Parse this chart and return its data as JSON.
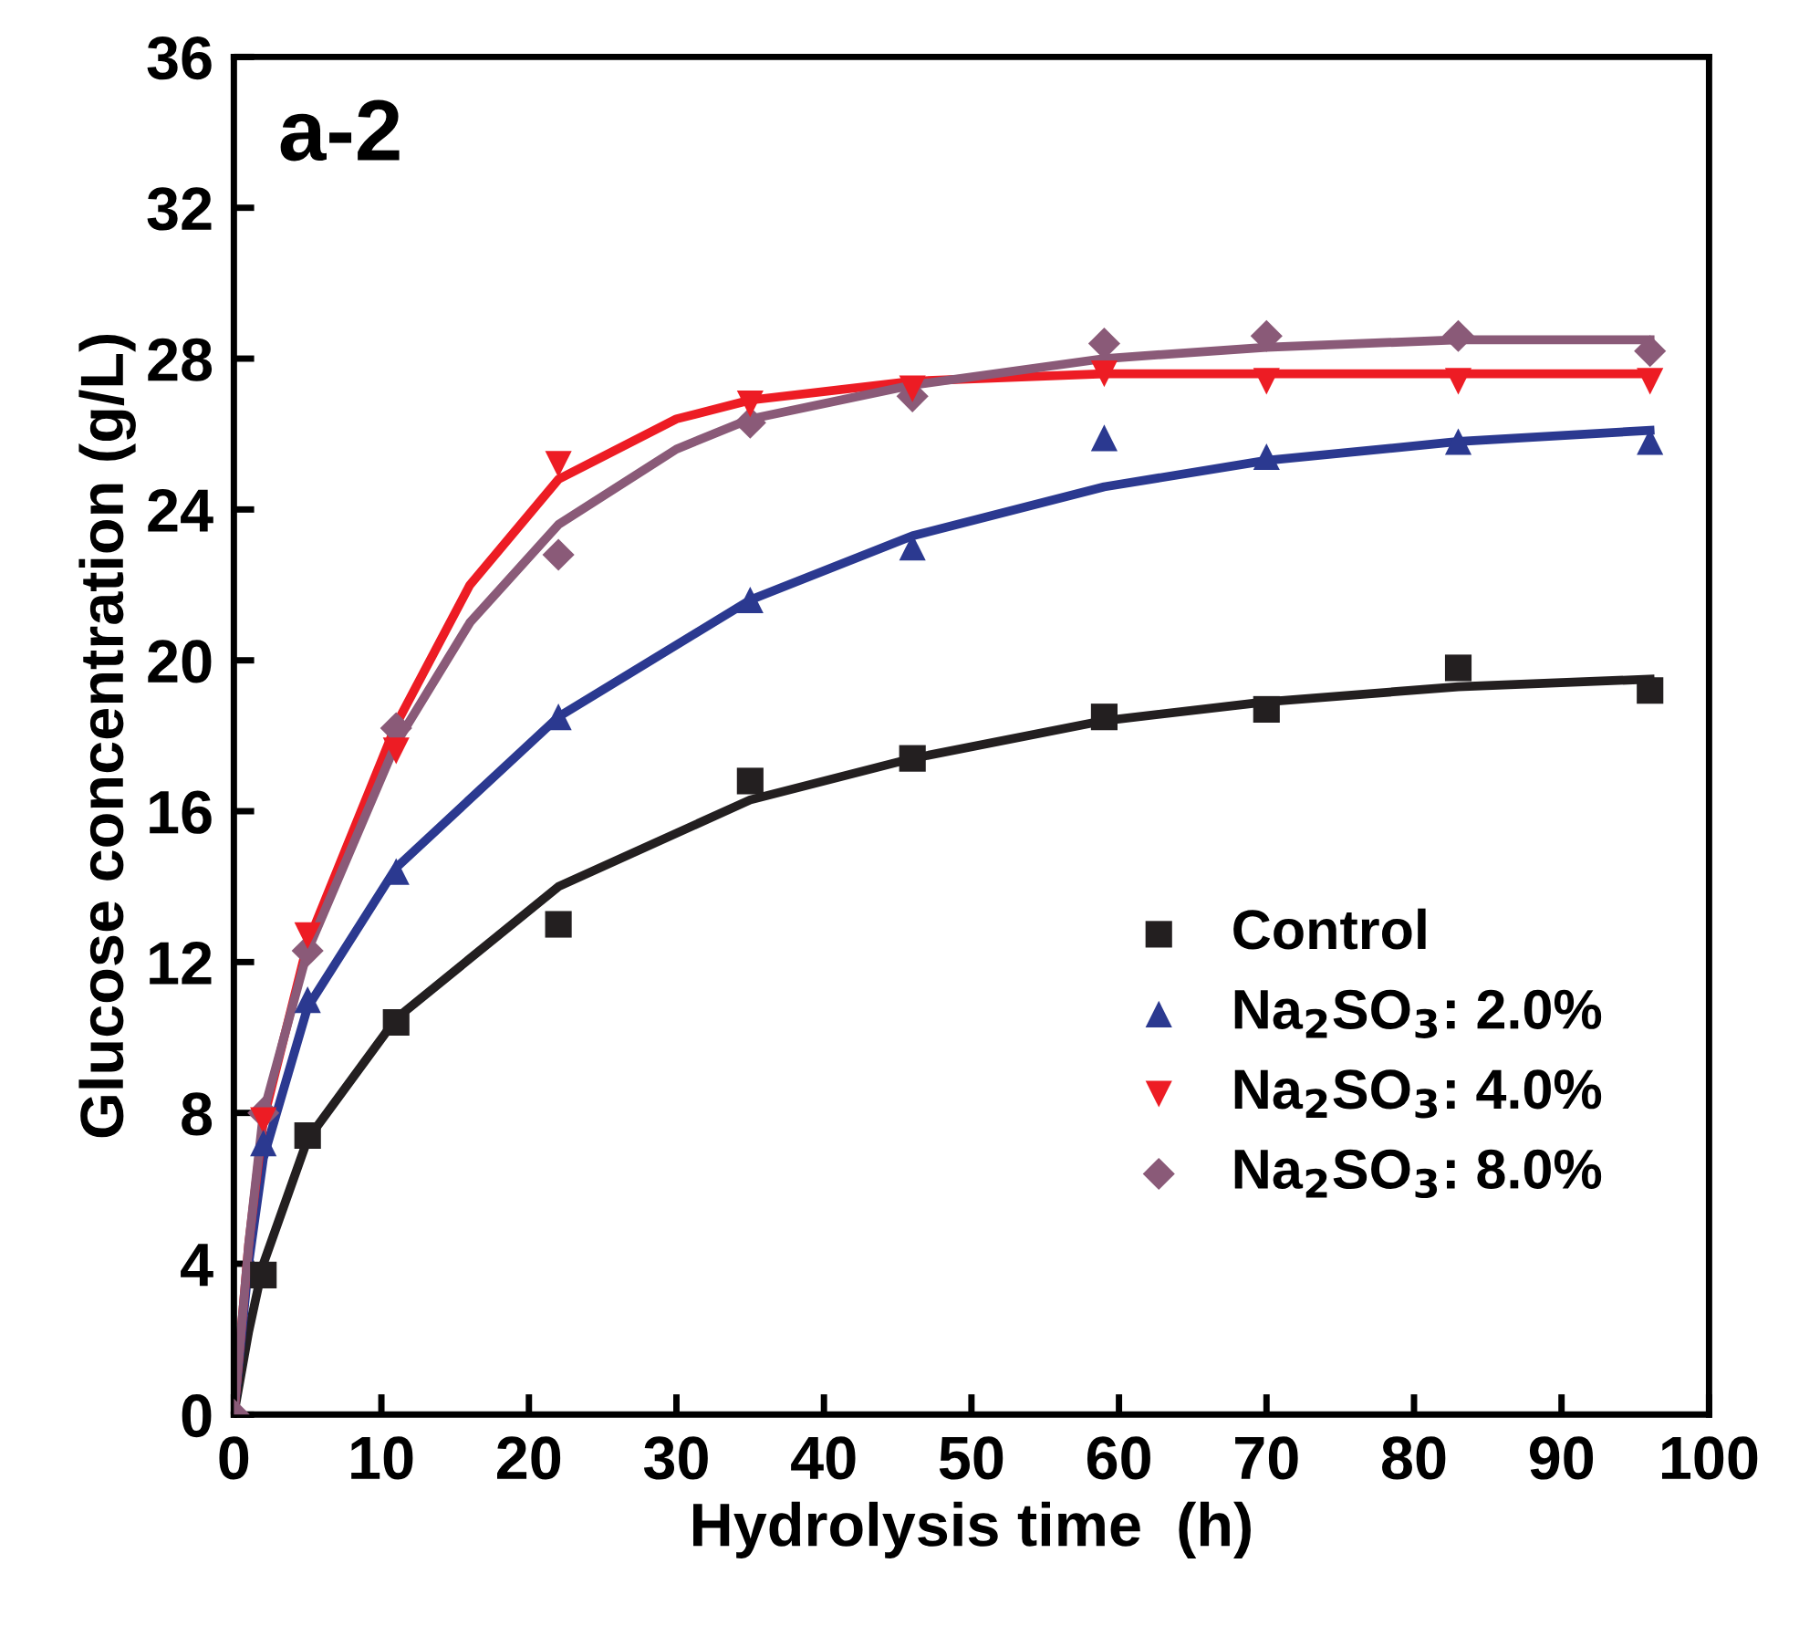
{
  "chart_data": {
    "type": "scatter",
    "xlabel": "Hydrolysis time  (h)",
    "ylabel": "Glucose concentration (g/L)",
    "annotations": [
      "a-2"
    ],
    "x": [
      0,
      2,
      5,
      11,
      22,
      35,
      46,
      59,
      70,
      83,
      96
    ],
    "xlim": [
      0,
      100
    ],
    "xticks": [
      0,
      10,
      20,
      30,
      40,
      50,
      60,
      70,
      80,
      90,
      100
    ],
    "ylim": [
      0,
      36
    ],
    "yticks": [
      0,
      4,
      8,
      12,
      16,
      20,
      24,
      28,
      32,
      36
    ],
    "grid": false,
    "legend": "bottom right",
    "series": [
      {
        "name": "Control",
        "color": "#231f20",
        "marker": "square",
        "values": [
          null,
          3.7,
          7.4,
          10.4,
          13.0,
          16.8,
          17.4,
          18.5,
          18.7,
          19.8,
          19.2
        ]
      },
      {
        "name": "Na$_{2}$SO$_{3}$: 2.0%",
        "color": "#2b3990",
        "marker": "triangle",
        "values": [
          null,
          7.2,
          11.0,
          14.4,
          18.5,
          21.6,
          23.0,
          25.9,
          25.4,
          25.8,
          25.8
        ]
      },
      {
        "name": "Na$_{2}$SO$_{3}$: 4.0%",
        "color": "#ed1c24",
        "marker": "triangle_down",
        "values": [
          null,
          7.8,
          12.7,
          17.6,
          25.2,
          26.8,
          27.2,
          27.6,
          27.4,
          27.4,
          27.4
        ]
      },
      {
        "name": "Na$_{2}$SO$_{3}$: 8.0%",
        "color": "#8a5a78",
        "marker": "diamond",
        "values": [
          0,
          8.0,
          12.3,
          18.2,
          22.8,
          26.3,
          27.0,
          28.4,
          28.6,
          28.6,
          28.2
        ]
      },
      {
        "type": "line",
        "color": "#231f20",
        "x": [
          0,
          1,
          2,
          5,
          11,
          22,
          35,
          46,
          59,
          70,
          83,
          96
        ],
        "values": [
          0,
          2.2,
          4.0,
          7.3,
          10.5,
          14.0,
          16.3,
          17.4,
          18.4,
          18.9,
          19.3,
          19.5
        ]
      },
      {
        "type": "line",
        "color": "#2b3990",
        "x": [
          0,
          1,
          2,
          5,
          11,
          22,
          35,
          46,
          59,
          70,
          83,
          96
        ],
        "values": [
          0,
          4.0,
          6.8,
          10.8,
          14.5,
          18.5,
          21.6,
          23.3,
          24.6,
          25.3,
          25.8,
          26.1
        ]
      },
      {
        "type": "line",
        "color": "#ed1c24",
        "x": [
          0,
          1,
          2,
          5,
          11,
          16,
          22,
          30,
          35,
          46,
          59,
          96
        ],
        "values": [
          0,
          4.5,
          7.8,
          12.5,
          18.3,
          22.0,
          24.8,
          26.4,
          26.9,
          27.4,
          27.6,
          27.6
        ]
      },
      {
        "type": "line",
        "color": "#8a5a78",
        "x": [
          0,
          1,
          2,
          5,
          11,
          16,
          22,
          30,
          35,
          46,
          59,
          70,
          83,
          96
        ],
        "values": [
          0,
          4.5,
          8.0,
          12.3,
          17.8,
          21.0,
          23.6,
          25.6,
          26.4,
          27.3,
          28.0,
          28.3,
          28.5,
          28.5
        ]
      }
    ]
  }
}
